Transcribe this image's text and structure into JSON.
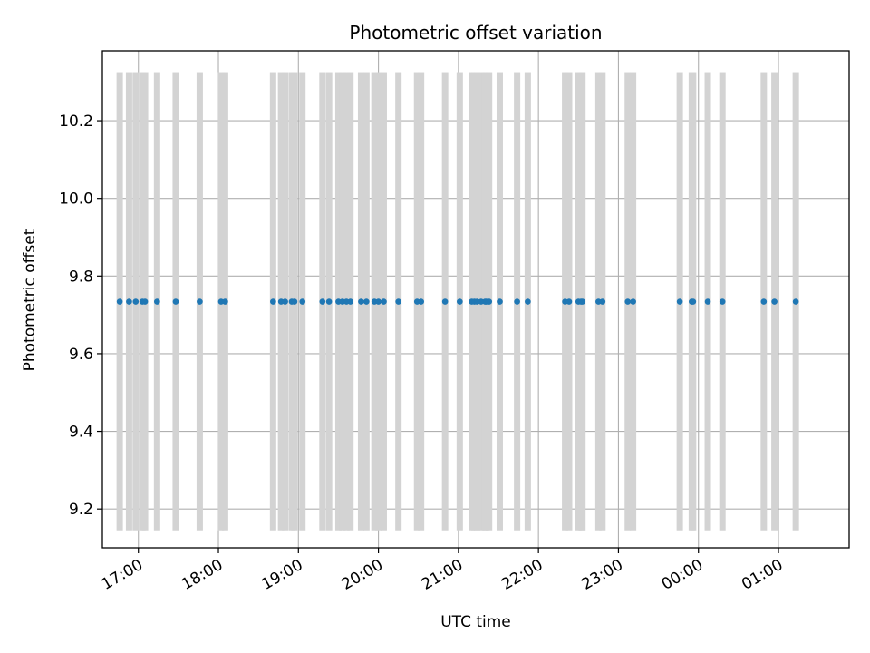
{
  "chart_data": {
    "type": "scatter",
    "title": "Photometric offset variation",
    "xlabel": "UTC time",
    "ylabel": "Photometric offset",
    "xlim": [
      "16:33",
      "01:53"
    ],
    "ylim": [
      9.1,
      10.38
    ],
    "grid": true,
    "x_ticks": [
      "17:00",
      "18:00",
      "19:00",
      "20:00",
      "21:00",
      "22:00",
      "23:00",
      "00:00",
      "01:00"
    ],
    "y_ticks": [
      "9.2",
      "9.4",
      "9.6",
      "9.8",
      "10.0",
      "10.2"
    ],
    "shade_range": [
      9.145,
      10.325
    ],
    "colors": {
      "points": "#1f77b4",
      "bands": "#d3d3d3",
      "grid": "#b0b0b0"
    },
    "series": [
      {
        "x": [
          "16:46",
          "16:53",
          "16:58",
          "17:03",
          "17:05",
          "17:14",
          "17:28",
          "17:46",
          "18:02",
          "18:05",
          "18:41",
          "18:47",
          "18:50",
          "18:55",
          "18:57",
          "19:03",
          "19:18",
          "19:23",
          "19:30",
          "19:33",
          "19:36",
          "19:39",
          "19:47",
          "19:51",
          "19:57",
          "20:00",
          "20:04",
          "20:15",
          "20:29",
          "20:32",
          "20:50",
          "21:01",
          "21:10",
          "21:12",
          "21:14",
          "21:17",
          "21:20",
          "21:21",
          "21:23",
          "21:31",
          "21:44",
          "21:52",
          "22:20",
          "22:23",
          "22:30",
          "22:32",
          "22:33",
          "22:45",
          "22:48",
          "23:07",
          "23:11",
          "23:46",
          "23:55",
          "23:56",
          "00:07",
          "00:18",
          "00:49",
          "00:57",
          "01:13"
        ],
        "y": [
          9.734,
          9.734,
          9.734,
          9.734,
          9.734,
          9.734,
          9.734,
          9.734,
          9.734,
          9.734,
          9.734,
          9.734,
          9.734,
          9.734,
          9.734,
          9.734,
          9.734,
          9.734,
          9.734,
          9.734,
          9.734,
          9.734,
          9.734,
          9.734,
          9.734,
          9.734,
          9.734,
          9.734,
          9.734,
          9.734,
          9.734,
          9.734,
          9.734,
          9.734,
          9.734,
          9.734,
          9.734,
          9.734,
          9.734,
          9.734,
          9.734,
          9.734,
          9.734,
          9.734,
          9.734,
          9.734,
          9.734,
          9.734,
          9.734,
          9.734,
          9.734,
          9.734,
          9.734,
          9.734,
          9.734,
          9.734,
          9.734,
          9.734,
          9.734
        ]
      }
    ]
  }
}
